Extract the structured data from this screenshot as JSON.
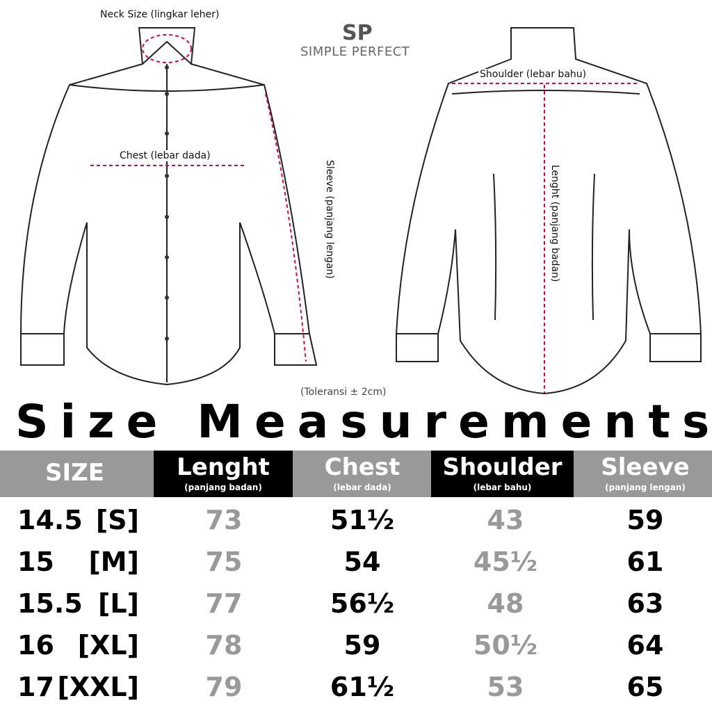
{
  "brand": {
    "logo_mark": "SP",
    "name": "SIMPLE PERFECT"
  },
  "diagram": {
    "neck_label": "Neck Size (lingkar leher)",
    "chest_label": "Chest (lebar dada)",
    "sleeve_label": "Sleeve (panjang lengan)",
    "shoulder_label": "Shoulder (lebar bahu)",
    "length_label": "Lenght (panjang badan)",
    "tolerance": "(Toleransi ± 2cm)",
    "measure_line_color": "#c8103c"
  },
  "title": "Size Measurements",
  "table": {
    "header_bg": "#999999",
    "columns": [
      {
        "label": "SIZE",
        "sub": ""
      },
      {
        "label": "Lenght",
        "sub": "(panjang badan)"
      },
      {
        "label": "Chest",
        "sub": "(lebar dada)"
      },
      {
        "label": "Shoulder",
        "sub": "(lebar bahu)"
      },
      {
        "label": "Sleeve",
        "sub": "(panjang lengan)"
      }
    ],
    "rows": [
      {
        "size": "14.5",
        "letter": "[S]",
        "length": "73",
        "chest": "51½",
        "shoulder": "43",
        "sleeve": "59"
      },
      {
        "size": "15",
        "letter": "[M]",
        "length": "75",
        "chest": "54",
        "shoulder": "45½",
        "sleeve": "61"
      },
      {
        "size": "15.5",
        "letter": "[L]",
        "length": "77",
        "chest": "56½",
        "shoulder": "48",
        "sleeve": "63"
      },
      {
        "size": "16",
        "letter": "[XL]",
        "length": "78",
        "chest": "59",
        "shoulder": "50½",
        "sleeve": "64"
      },
      {
        "size": "17",
        "letter": "[XXL]",
        "length": "79",
        "chest": "61½",
        "shoulder": "53",
        "sleeve": "65"
      }
    ]
  }
}
